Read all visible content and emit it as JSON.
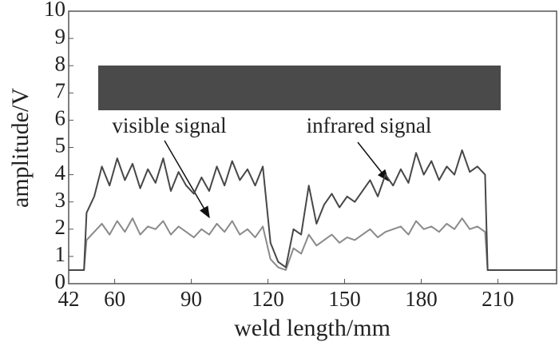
{
  "chart_data": {
    "type": "line",
    "xlabel": "weld length/mm",
    "ylabel": "amplitude/V",
    "x": [
      42,
      48,
      49,
      52,
      55,
      58,
      61,
      64,
      67,
      70,
      73,
      76,
      79,
      82,
      85,
      88,
      91,
      94,
      97,
      100,
      103,
      106,
      109,
      112,
      115,
      118,
      121,
      124,
      127,
      130,
      133,
      136,
      139,
      142,
      145,
      148,
      151,
      154,
      157,
      160,
      163,
      166,
      169,
      172,
      175,
      178,
      181,
      184,
      187,
      190,
      193,
      196,
      199,
      202,
      205,
      206,
      233
    ],
    "series": [
      {
        "name": "infrared signal",
        "color": "#474747",
        "values": [
          0.5,
          0.5,
          2.6,
          3.2,
          4.3,
          3.6,
          4.6,
          3.8,
          4.4,
          3.5,
          4.2,
          3.7,
          4.6,
          3.4,
          4.1,
          3.6,
          3.3,
          3.9,
          3.4,
          4.3,
          3.6,
          4.5,
          3.8,
          4.2,
          3.6,
          4.3,
          1.5,
          0.8,
          0.6,
          2.0,
          1.8,
          3.6,
          2.2,
          2.9,
          3.3,
          2.8,
          3.2,
          3.0,
          3.4,
          3.8,
          3.2,
          4.0,
          3.6,
          4.2,
          3.7,
          4.8,
          4.0,
          4.5,
          3.8,
          4.3,
          4.0,
          4.9,
          4.1,
          4.3,
          4.0,
          0.5,
          0.5
        ]
      },
      {
        "name": "visible signal",
        "color": "#8a8a8a",
        "values": [
          0.5,
          0.5,
          1.6,
          1.9,
          2.2,
          1.8,
          2.3,
          1.9,
          2.4,
          1.8,
          2.1,
          2.0,
          2.3,
          1.8,
          2.1,
          1.9,
          1.7,
          2.0,
          1.8,
          2.2,
          1.9,
          2.3,
          1.8,
          2.0,
          1.7,
          2.1,
          0.9,
          0.6,
          0.5,
          1.3,
          1.1,
          1.8,
          1.4,
          1.6,
          1.8,
          1.5,
          1.7,
          1.6,
          1.8,
          2.0,
          1.7,
          1.9,
          2.0,
          2.1,
          1.8,
          2.3,
          2.0,
          2.1,
          1.9,
          2.2,
          2.0,
          2.4,
          2.0,
          2.1,
          1.9,
          0.5,
          0.5
        ]
      }
    ],
    "xlim": [
      42,
      233
    ],
    "xticks": [
      42,
      60,
      90,
      120,
      150,
      180,
      210
    ],
    "ylim": [
      0,
      10
    ],
    "yticks": [
      0,
      1,
      2,
      3,
      4,
      5,
      6,
      7,
      8,
      9,
      10
    ]
  }
}
